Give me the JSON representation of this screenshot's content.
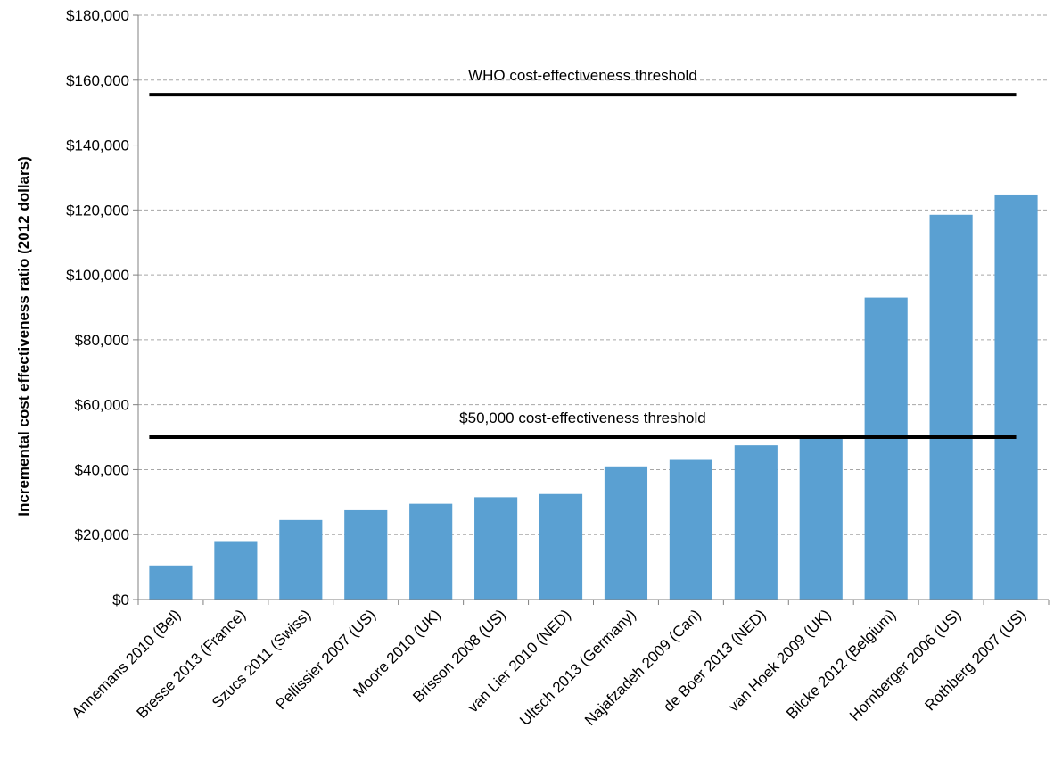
{
  "chart_data": {
    "type": "bar",
    "ylabel": "Incremental cost effectiveness ratio  (2012 dollars)",
    "xlabel": "",
    "ylim": [
      0,
      180000
    ],
    "ytick_step": 20000,
    "ytick_labels": [
      "$0",
      "$20,000",
      "$40,000",
      "$60,000",
      "$80,000",
      "$100,000",
      "$120,000",
      "$140,000",
      "$160,000",
      "$180,000"
    ],
    "grid": true,
    "bar_color": "#5aa0d2",
    "categories": [
      "Annemans 2010 (Bel)",
      "Bresse 2013 (France)",
      "Szucs 2011 (Swiss)",
      "Pellissier 2007 (US)",
      "Moore 2010 (UK)",
      "Brisson 2008 (US)",
      "van Lier 2010 (NED)",
      "Ultsch 2013 (Germany)",
      "Najafzadeh 2009 (Can)",
      "de Boer 2013 (NED)",
      "van Hoek 2009 (UK)",
      "Bilcke 2012 (Belgium)",
      "Hornberger 2006 (US)",
      "Rothberg 2007 (US)"
    ],
    "values": [
      10500,
      18000,
      24500,
      27500,
      29500,
      31500,
      32500,
      41000,
      43000,
      47500,
      49500,
      93000,
      118500,
      124500
    ],
    "reference_lines": [
      {
        "label": "WHO cost-effectiveness threshold",
        "value": 155500
      },
      {
        "label": "$50,000 cost-effectiveness threshold",
        "value": 50000
      }
    ]
  }
}
